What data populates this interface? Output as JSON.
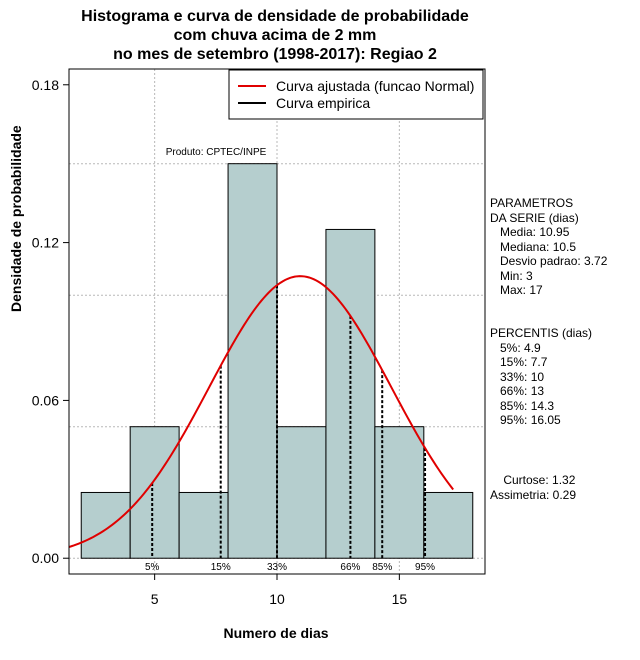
{
  "chart_data": {
    "type": "histogram",
    "title_lines": [
      "Histograma e curva de densidade de probabilidade",
      "com chuva acima de 2 mm",
      "no mes de setembro (1998-2017): Regiao 2"
    ],
    "xlabel": "Numero de dias",
    "ylabel": "Densidade de probabilidade",
    "xlim": [
      1.5,
      18.5
    ],
    "ylim": [
      -0.006,
      0.186
    ],
    "x_ticks": [
      5,
      10,
      15
    ],
    "y_ticks": [
      0.0,
      0.06,
      0.12,
      0.18
    ],
    "y_tick_labels": [
      "0.00",
      "0.06",
      "0.12",
      "0.18"
    ],
    "grid_y": [
      0.05,
      0.1,
      0.15
    ],
    "grid_x": [
      5,
      10,
      15
    ],
    "bins": [
      {
        "x0": 2,
        "x1": 4,
        "density": 0.025
      },
      {
        "x0": 4,
        "x1": 6,
        "density": 0.05
      },
      {
        "x0": 6,
        "x1": 8,
        "density": 0.025
      },
      {
        "x0": 8,
        "x1": 10,
        "density": 0.15
      },
      {
        "x0": 10,
        "x1": 12,
        "density": 0.05
      },
      {
        "x0": 12,
        "x1": 14,
        "density": 0.125
      },
      {
        "x0": 14,
        "x1": 16,
        "density": 0.05
      },
      {
        "x0": 16,
        "x1": 18,
        "density": 0.025
      }
    ],
    "normal_curve": {
      "mean": 10.95,
      "sd": 3.72,
      "x_range": [
        1.5,
        17.2
      ]
    },
    "percentile_lines": [
      {
        "label": "5%",
        "x": 4.9
      },
      {
        "label": "15%",
        "x": 7.7
      },
      {
        "label": "33%",
        "x": 10
      },
      {
        "label": "66%",
        "x": 13
      },
      {
        "label": "85%",
        "x": 14.3
      },
      {
        "label": "95%",
        "x": 16.05
      }
    ],
    "legend": [
      {
        "label": "Curva ajustada (funcao Normal)",
        "color": "#e00000"
      },
      {
        "label": "Curva empirica",
        "color": "#000000"
      }
    ],
    "legend_position": "top-right",
    "annotation": "Produto: CPTEC/INPE",
    "bar_color": "#b5cece",
    "curve_color": "#e00000"
  },
  "side_panel": {
    "parametros": "PARAMETROS\nDA SERIE (dias)\n   Media: 10.95\n   Mediana: 10.5\n   Desvio padrao: 3.72\n   Min: 3\n   Max: 17",
    "percentis": "PERCENTIS (dias)\n   5%: 4.9\n   15%: 7.7\n   33%: 10\n   66%: 13\n   85%: 14.3\n   95%: 16.05",
    "curtose": "    Curtose: 1.32",
    "assimetria": "Assimetria: 0.29"
  }
}
